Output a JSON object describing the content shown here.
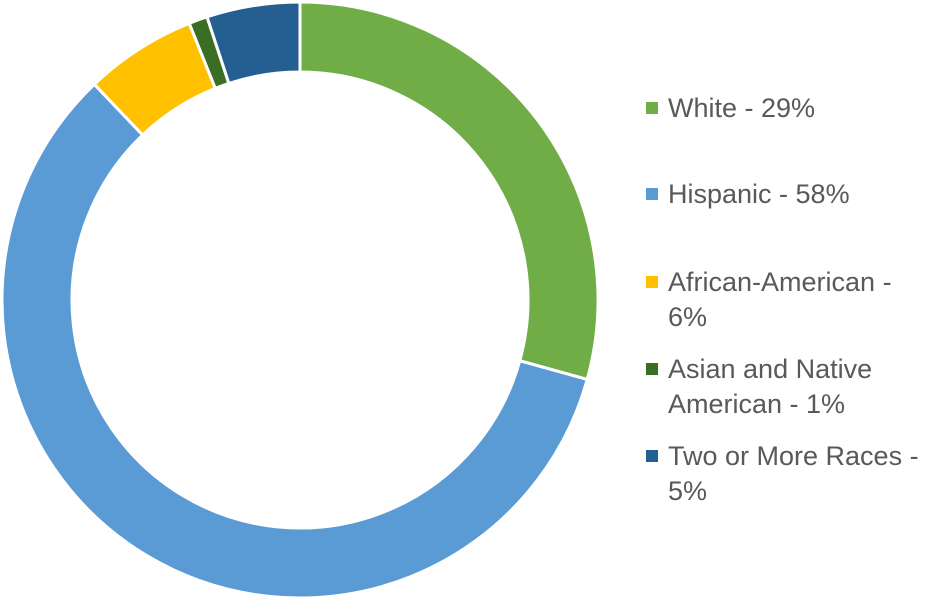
{
  "chart_data": {
    "type": "pie",
    "variant": "donut",
    "title": "",
    "categories": [
      "White",
      "Hispanic",
      "African-American",
      "Asian and Native American",
      "Two or More Races"
    ],
    "values": [
      29,
      58,
      6,
      1,
      5
    ],
    "units": "%",
    "colors": [
      "#70AD47",
      "#5B9BD5",
      "#FFC000",
      "#3A6E24",
      "#255E91"
    ],
    "legend_position": "right",
    "legend": [
      {
        "label": "White - 29%",
        "color": "#70AD47"
      },
      {
        "label": "Hispanic - 58%",
        "color": "#5B9BD5"
      },
      {
        "label": "African-American - 6%",
        "color": "#FFC000"
      },
      {
        "label": "Asian and Native American - 1%",
        "color": "#3A6E24"
      },
      {
        "label": "Two or More Races - 5%",
        "color": "#255E91"
      }
    ]
  }
}
